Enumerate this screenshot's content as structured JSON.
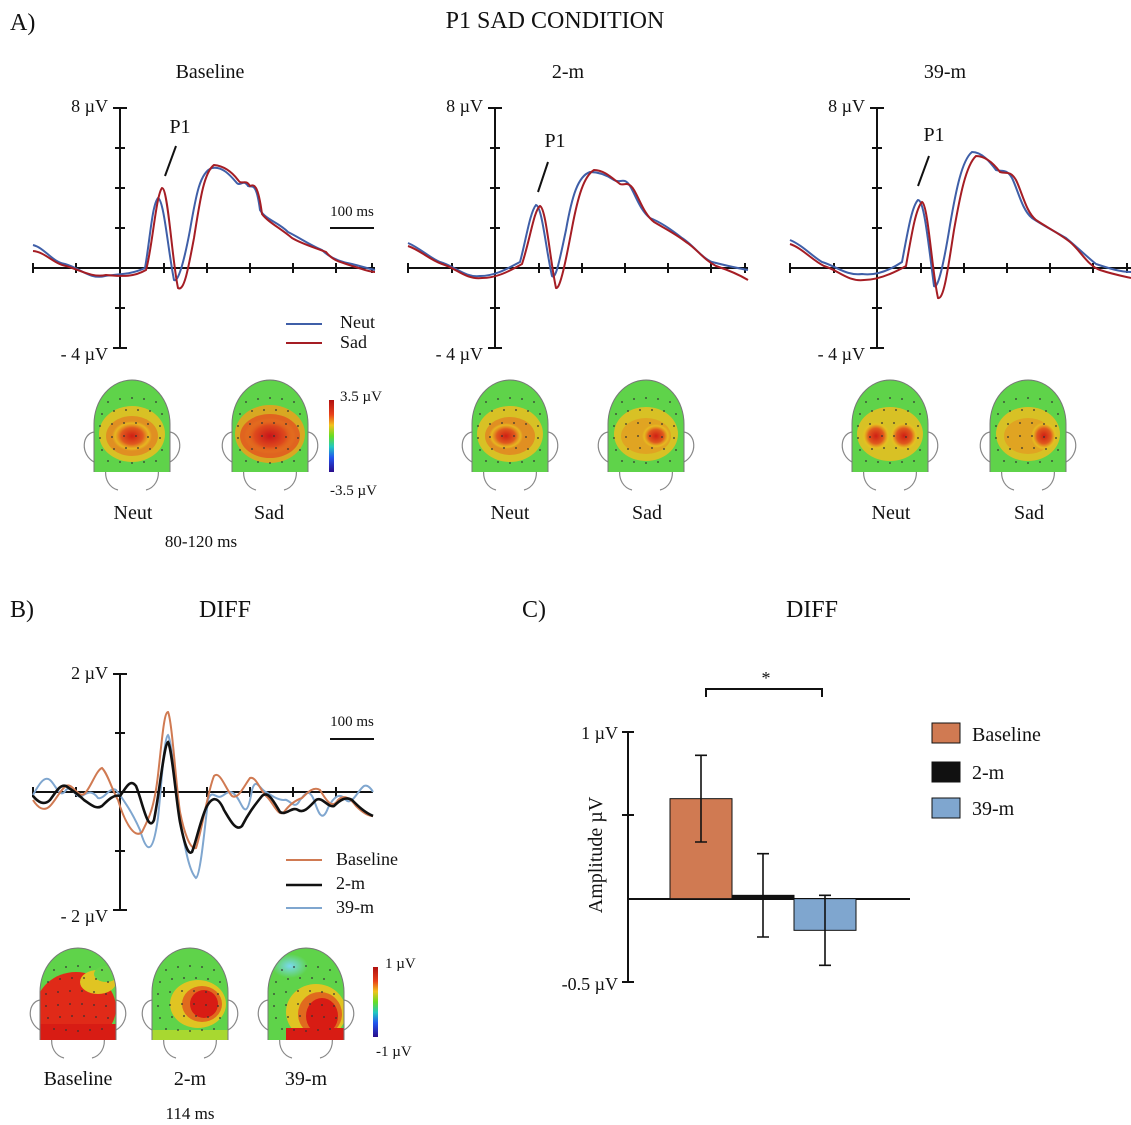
{
  "panel_a": {
    "letter": "A)",
    "title": "P1 SAD CONDITION",
    "subplots": [
      {
        "title": "Baseline",
        "ymax_label": "8 µV",
        "ymin_label": "- 4 µV",
        "peak_label": "P1",
        "scale_label": "100 ms"
      },
      {
        "title": "2-m",
        "ymax_label": "8 µV",
        "ymin_label": "- 4 µV",
        "peak_label": "P1"
      },
      {
        "title": "39-m",
        "ymax_label": "8 µV",
        "ymin_label": "- 4 µV",
        "peak_label": "P1"
      }
    ],
    "legend": [
      "Neut",
      "Sad"
    ],
    "colorbar": {
      "max": "3.5 µV",
      "min": "-3.5 µV"
    },
    "topo_labels": [
      "Neut",
      "Sad",
      "Neut",
      "Sad",
      "Neut",
      "Sad"
    ],
    "time_window": "80-120 ms"
  },
  "panel_b": {
    "letter": "B)",
    "title": "DIFF",
    "ymax_label": "2 µV",
    "ymin_label": "- 2 µV",
    "scale_label": "100 ms",
    "legend": [
      "Baseline",
      "2-m",
      "39-m"
    ],
    "colorbar": {
      "max": "1 µV",
      "min": "-1 µV"
    },
    "topo_labels": [
      "Baseline",
      "2-m",
      "39-m"
    ],
    "time_label": "114 ms"
  },
  "panel_c": {
    "letter": "C)",
    "title": "DIFF",
    "ylabel": "Amplitude µV",
    "ymax_label": "1 µV",
    "ymin_label": "-0.5 µV",
    "significance": "*"
  },
  "colors": {
    "neut": "#3f5fa8",
    "sad": "#a51d24",
    "baseline": "#d07a52",
    "two_m": "#111111",
    "thirty_nine_m": "#7fa6cf"
  },
  "chart_data": {
    "type": "bar",
    "categories": [
      "Baseline",
      "2-m",
      "39-m"
    ],
    "values": [
      0.6,
      0.02,
      -0.19
    ],
    "errors": [
      0.26,
      0.25,
      0.21
    ],
    "ylim": [
      -0.5,
      1
    ],
    "legend": "right"
  }
}
